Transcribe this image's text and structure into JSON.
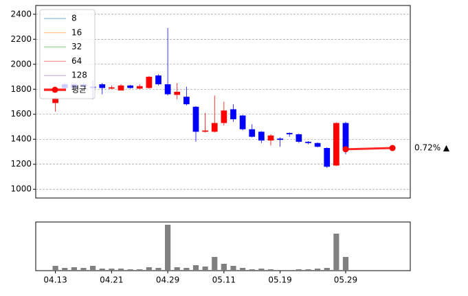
{
  "chart_data": {
    "type": "candlestick",
    "categories": [
      "04.13",
      null,
      null,
      null,
      null,
      null,
      "04.21",
      null,
      null,
      null,
      null,
      null,
      "04.29",
      null,
      null,
      null,
      null,
      null,
      "05.11",
      null,
      null,
      null,
      null,
      null,
      "05.19",
      null,
      null,
      null,
      null,
      null,
      null,
      "05.29"
    ],
    "open": [
      1690,
      1840,
      1840,
      1840,
      1820,
      1840,
      1805,
      1790,
      1830,
      1805,
      1810,
      1910,
      1840,
      1755,
      1740,
      1660,
      1460,
      1460,
      1530,
      1640,
      1590,
      1480,
      1460,
      1390,
      1405,
      1450,
      1440,
      1380,
      1370,
      1330,
      1190,
      1530
    ],
    "high": [
      1740,
      1850,
      1850,
      1850,
      1870,
      1850,
      1830,
      1840,
      1835,
      1840,
      1905,
      1920,
      2290,
      1850,
      1820,
      1665,
      1610,
      1750,
      1700,
      1680,
      1595,
      1520,
      1465,
      1440,
      1415,
      1455,
      1445,
      1385,
      1375,
      1335,
      1535,
      1540
    ],
    "low": [
      1620,
      1800,
      1800,
      1800,
      1720,
      1760,
      1800,
      1790,
      1805,
      1800,
      1805,
      1830,
      1750,
      1720,
      1670,
      1380,
      1455,
      1455,
      1510,
      1540,
      1470,
      1415,
      1370,
      1350,
      1340,
      1420,
      1370,
      1360,
      1335,
      1170,
      1185,
      1280
    ],
    "close": [
      1730,
      1810,
      1810,
      1820,
      1810,
      1810,
      1815,
      1830,
      1810,
      1825,
      1900,
      1840,
      1760,
      1780,
      1680,
      1460,
      1470,
      1530,
      1630,
      1560,
      1480,
      1420,
      1390,
      1430,
      1395,
      1440,
      1380,
      1370,
      1340,
      1180,
      1530,
      1320
    ],
    "up_color": "#ff0000",
    "down_color": "#0000ff",
    "volume": [
      7,
      4,
      5,
      4,
      7,
      3,
      3,
      3,
      2,
      2,
      5,
      4,
      67,
      5,
      4,
      8,
      6,
      20,
      10,
      7,
      4,
      2,
      3,
      2,
      1,
      1,
      2,
      2,
      3,
      4,
      54,
      20
    ],
    "volume_color": "#808080",
    "xlim": [
      -2.1,
      37.9
    ],
    "ylim": [
      930,
      2470
    ],
    "yticks": [
      1000,
      1200,
      1400,
      1600,
      1800,
      2000,
      2200,
      2400
    ],
    "grid": true,
    "legend": [
      {
        "name": "8",
        "color": "#1f77b4"
      },
      {
        "name": "16",
        "color": "#ff7f0e"
      },
      {
        "name": "32",
        "color": "#2ca02c"
      },
      {
        "name": "64",
        "color": "#d62728"
      },
      {
        "name": "128",
        "color": "#9467bd"
      },
      {
        "name": "평균",
        "color": "#ff0000"
      }
    ],
    "average": {
      "x": [
        31,
        36
      ],
      "values": [
        1320,
        1330
      ],
      "color": "#ff0000",
      "label": "0.72% ▲"
    }
  }
}
